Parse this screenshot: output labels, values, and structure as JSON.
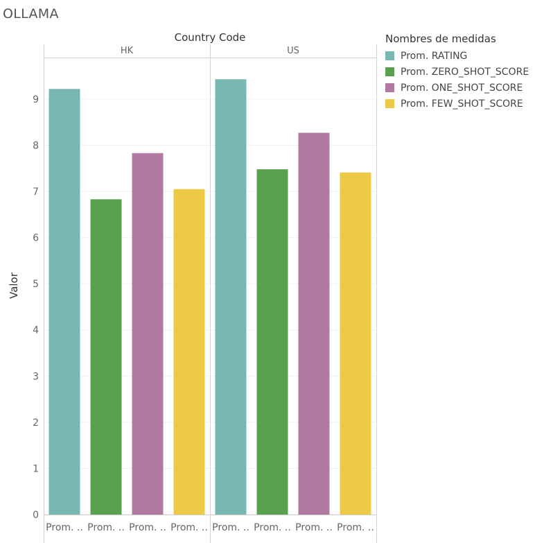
{
  "sheet": {
    "title": "OLLAMA"
  },
  "chart_data": {
    "type": "bar",
    "column_field": "Country Code",
    "ylabel": "Valor",
    "ylim": [
      0,
      9.9
    ],
    "yticks": [
      0,
      1,
      2,
      3,
      4,
      5,
      6,
      7,
      8,
      9
    ],
    "grid": true,
    "legend_placement": "right",
    "legend_title": "Nombres de medidas",
    "categories": [
      "Prom. ..",
      "Prom. ..",
      "Prom. ..",
      "Prom. .."
    ],
    "series": [
      {
        "name": "Prom. RATING",
        "color": "#79b7b2"
      },
      {
        "name": "Prom. ZERO_SHOT_SCORE",
        "color": "#59a14f"
      },
      {
        "name": "Prom. ONE_SHOT_SCORE",
        "color": "#b07aa1"
      },
      {
        "name": "Prom. FEW_SHOT_SCORE",
        "color": "#edc948"
      }
    ],
    "panes": [
      {
        "label": "HK",
        "values": [
          9.22,
          6.83,
          7.83,
          7.05
        ]
      },
      {
        "label": "US",
        "values": [
          9.43,
          7.48,
          8.27,
          7.41
        ]
      }
    ]
  }
}
